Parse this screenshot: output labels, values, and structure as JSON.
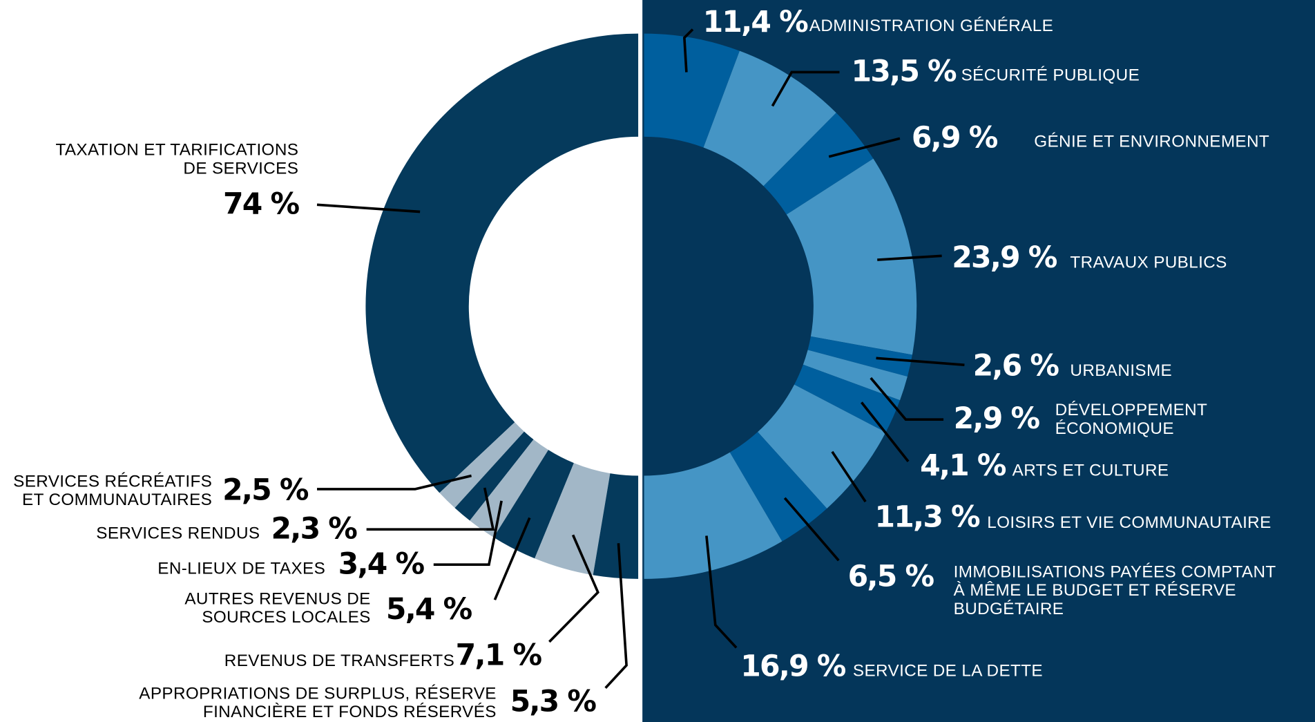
{
  "chart_data": [
    {
      "type": "donut",
      "categories": [
        "TAXATION ET TARIFICATIONS\nDE SERVICES",
        "SERVICES RÉCRÉATIFS\nET COMMUNAUTAIRES",
        "SERVICES RENDUS",
        "EN-LIEUX DE TAXES",
        "AUTRES REVENUS DE\nSOURCES LOCALES",
        "REVENUS DE TRANSFERTS",
        "APPROPRIATIONS DE SURPLUS, RÉSERVE\nFINANCIÈRE ET FONDS RÉSERVÉS"
      ],
      "values": [
        74,
        2.5,
        2.3,
        3.4,
        5.4,
        7.1,
        5.3
      ],
      "value_labels": [
        "74 %",
        "2,5 %",
        "2,3 %",
        "3,4 %",
        "5,4 %",
        "7,1 %",
        "5,3 %"
      ],
      "colors": [
        "#053a5c",
        "#a2b7c7",
        "#053a5c",
        "#a2b7c7",
        "#053a5c",
        "#a2b7c7",
        "#053a5c"
      ]
    },
    {
      "type": "donut",
      "categories": [
        "ADMINISTRATION GÉNÉRALE",
        "SÉCURITÉ PUBLIQUE",
        "GÉNIE ET ENVIRONNEMENT",
        "TRAVAUX PUBLICS",
        "URBANISME",
        "DÉVELOPPEMENT\nÉCONOMIQUE",
        "ARTS ET CULTURE",
        "LOISIRS ET VIE COMMUNAUTAIRE",
        "IMMOBILISATIONS PAYÉES COMPTANT\nÀ MÊME LE BUDGET ET RÉSERVE\nBUDGÉTAIRE",
        "SERVICE DE LA DETTE"
      ],
      "values": [
        11.4,
        13.5,
        6.9,
        23.9,
        2.6,
        2.9,
        4.1,
        11.3,
        6.5,
        16.9
      ],
      "value_labels": [
        "11,4 %",
        "13,5 %",
        "6,9 %",
        "23,9 %",
        "2,6 %",
        "2,9 %",
        "4,1 %",
        "11,3 %",
        "6,5 %",
        "16,9 %"
      ],
      "colors": [
        "#005f9e",
        "#4595c5",
        "#005f9e",
        "#4595c5",
        "#005f9e",
        "#4595c5",
        "#005f9e",
        "#4595c5",
        "#005f9e",
        "#4595c5"
      ]
    }
  ]
}
